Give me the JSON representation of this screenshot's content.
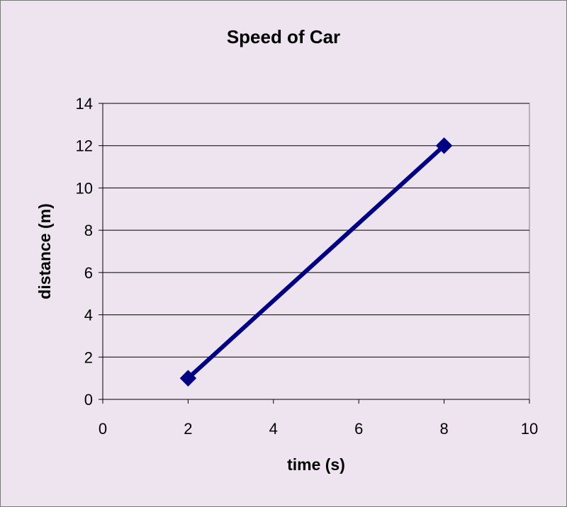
{
  "chart_data": {
    "type": "line",
    "title": "Speed of Car",
    "xlabel": "time (s)",
    "ylabel": "distance (m)",
    "xlim": [
      0,
      10
    ],
    "ylim": [
      0,
      14
    ],
    "xticks": [
      0,
      2,
      4,
      6,
      8,
      10
    ],
    "yticks": [
      0,
      2,
      4,
      6,
      8,
      10,
      12,
      14
    ],
    "grid": "horizontal",
    "legend": "none",
    "marker": "diamond",
    "series": [
      {
        "x": [
          2,
          8
        ],
        "y": [
          1,
          12
        ]
      }
    ]
  },
  "colors": {
    "background": "#ede4f0",
    "plot_area": "#ede4f0",
    "series": "#000080",
    "grid": "#000000"
  }
}
